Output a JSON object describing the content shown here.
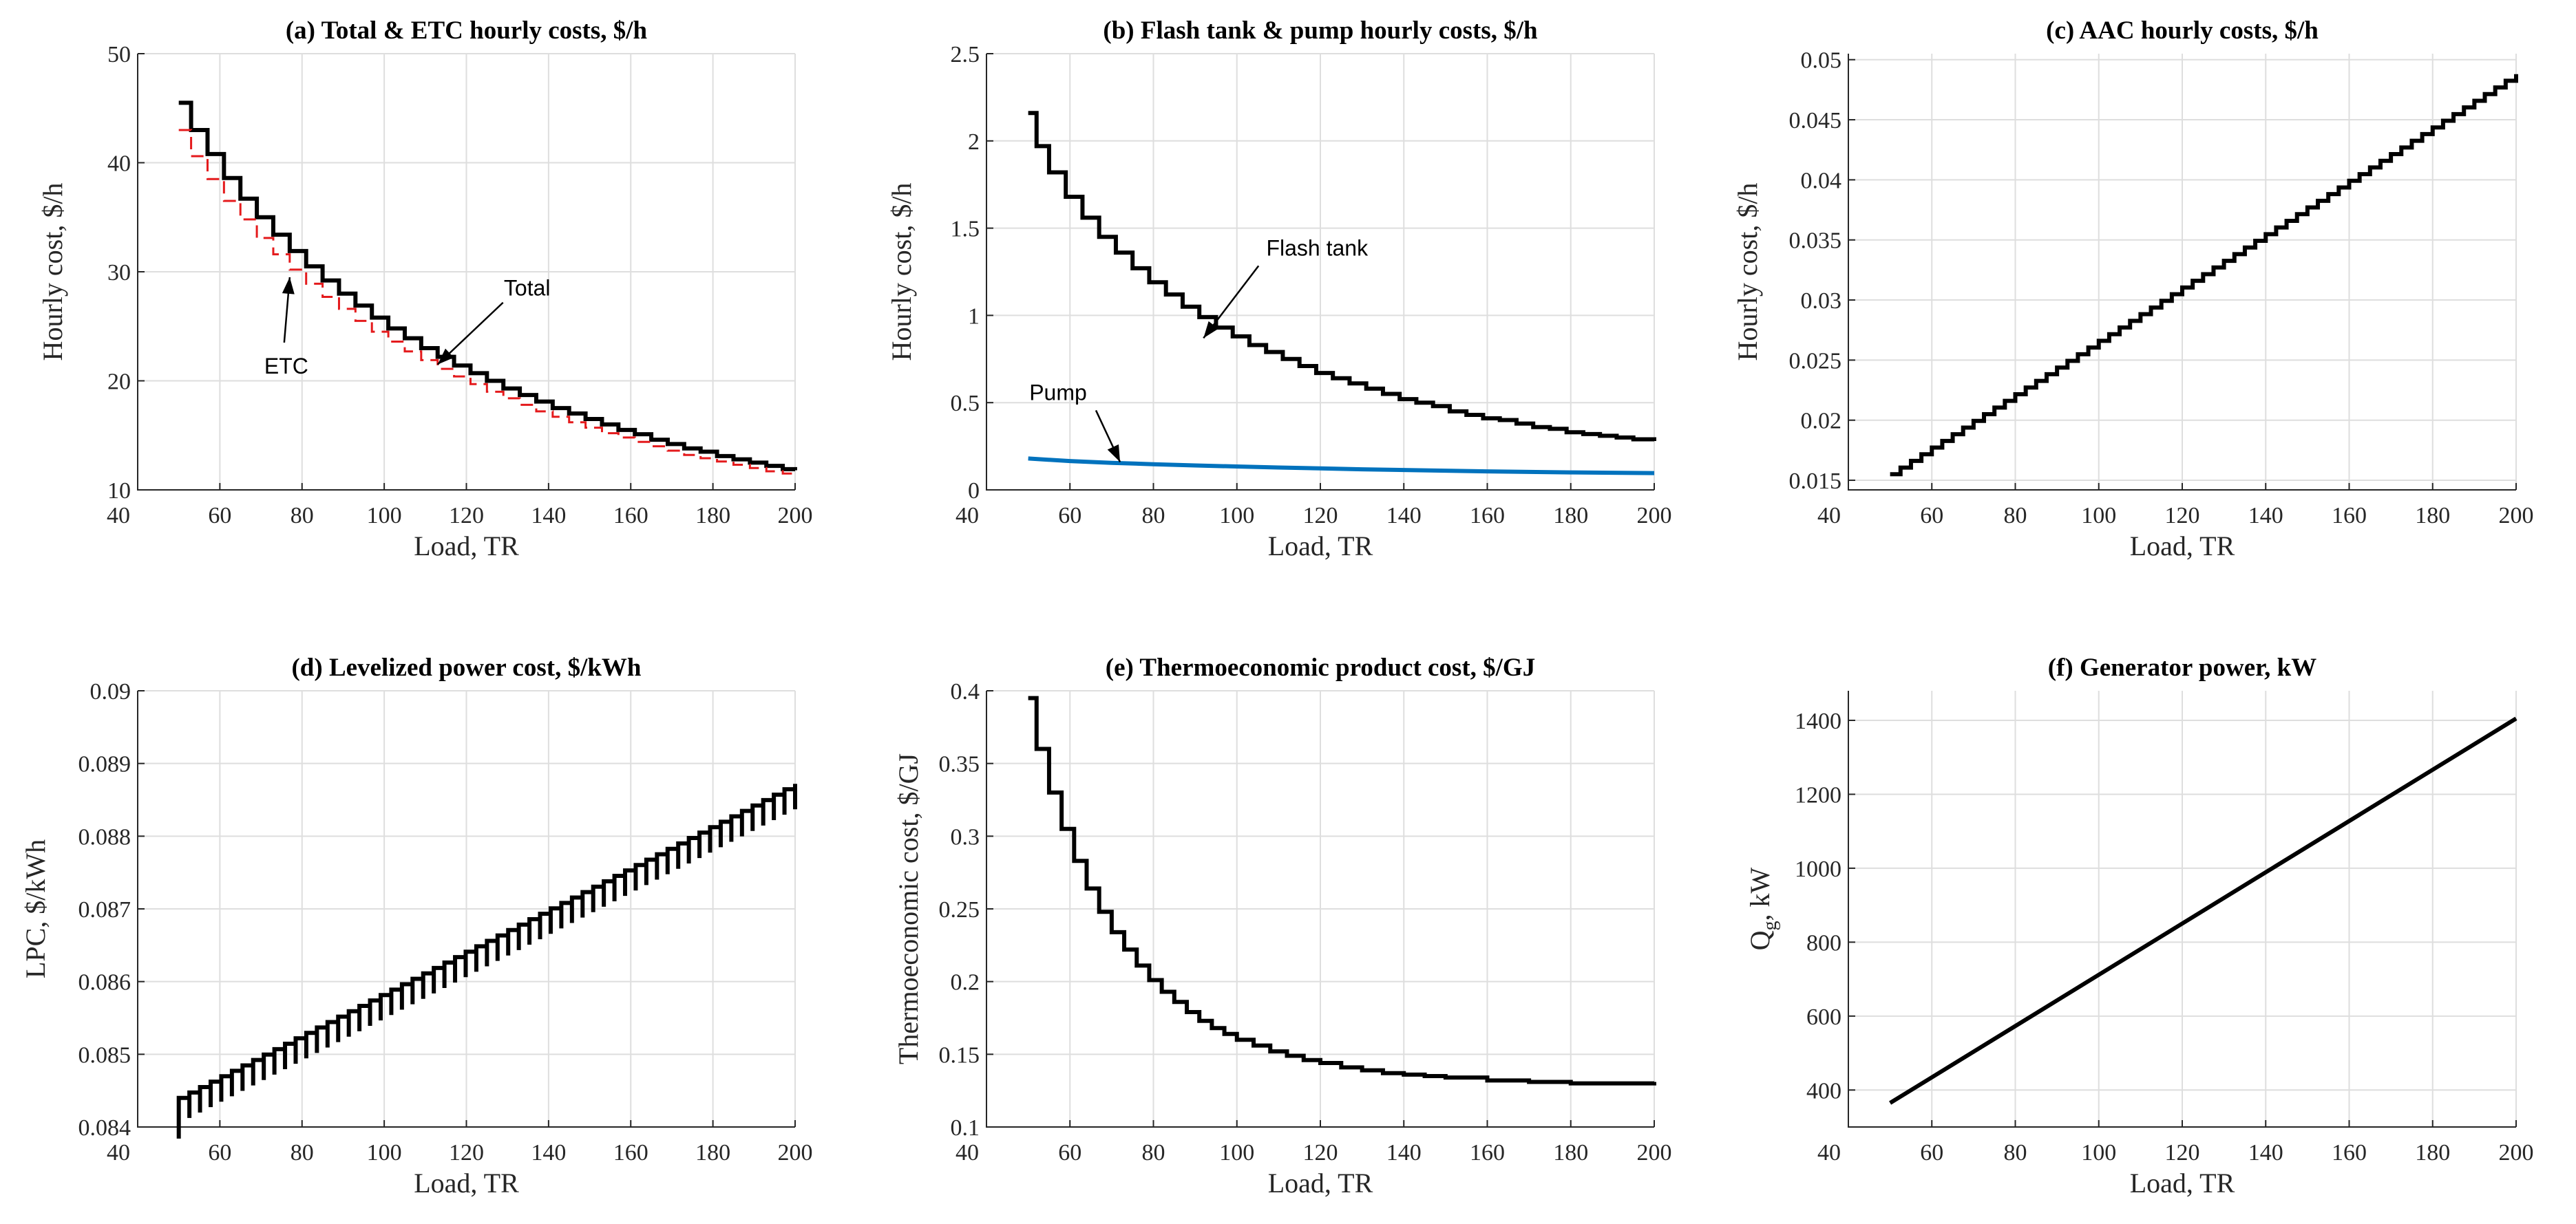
{
  "chart_data": [
    {
      "id": "a",
      "type": "line",
      "title": "(a) Total & ETC hourly costs, $/h",
      "xlabel": "Load, TR",
      "ylabel": "Hourly cost, $/h",
      "xlim": [
        40,
        200
      ],
      "ylim": [
        10,
        50
      ],
      "xticks": [
        40,
        60,
        80,
        100,
        120,
        140,
        160,
        180,
        200
      ],
      "yticks": [
        10,
        20,
        30,
        40,
        50
      ],
      "grid": true,
      "series": [
        {
          "name": "Total",
          "color": "#000000",
          "style": "step",
          "x": [
            50,
            53,
            57,
            61,
            65,
            69,
            73,
            77,
            81,
            85,
            89,
            93,
            97,
            101,
            105,
            109,
            113,
            117,
            121,
            125,
            129,
            133,
            137,
            141,
            145,
            149,
            153,
            157,
            161,
            165,
            169,
            173,
            177,
            181,
            185,
            189,
            193,
            197,
            200
          ],
          "values": [
            45.5,
            43.0,
            40.8,
            38.6,
            36.7,
            35.0,
            33.4,
            31.9,
            30.5,
            29.2,
            28.0,
            26.9,
            25.8,
            24.8,
            23.9,
            23.0,
            22.2,
            21.4,
            20.7,
            20.0,
            19.3,
            18.7,
            18.1,
            17.5,
            17.0,
            16.5,
            16.0,
            15.5,
            15.1,
            14.6,
            14.2,
            13.8,
            13.5,
            13.1,
            12.8,
            12.5,
            12.2,
            11.9,
            11.8
          ]
        },
        {
          "name": "ETC",
          "color": "#e41a1c",
          "style": "dashed",
          "x": [
            50,
            53,
            57,
            61,
            65,
            69,
            73,
            77,
            81,
            85,
            89,
            93,
            97,
            101,
            105,
            109,
            113,
            117,
            121,
            125,
            129,
            133,
            137,
            141,
            145,
            149,
            153,
            157,
            161,
            165,
            169,
            173,
            177,
            181,
            185,
            189,
            193,
            197,
            200
          ],
          "values": [
            43.0,
            40.6,
            38.5,
            36.5,
            34.8,
            33.1,
            31.6,
            30.2,
            28.9,
            27.7,
            26.6,
            25.5,
            24.5,
            23.6,
            22.7,
            21.9,
            21.1,
            20.4,
            19.7,
            19.0,
            18.4,
            17.8,
            17.2,
            16.7,
            16.2,
            15.7,
            15.2,
            14.8,
            14.4,
            14.0,
            13.6,
            13.2,
            12.9,
            12.6,
            12.3,
            12.0,
            11.7,
            11.5,
            11.4
          ]
        }
      ],
      "annotations": [
        {
          "text": "Total",
          "x": 113,
          "y": 21.5
        },
        {
          "text": "ETC",
          "x": 77,
          "y": 29.5
        }
      ]
    },
    {
      "id": "b",
      "type": "line",
      "title": "(b) Flash tank & pump hourly costs, $/h",
      "xlabel": "Load, TR",
      "ylabel": "Hourly cost, $/h",
      "xlim": [
        40,
        200
      ],
      "ylim": [
        0,
        2.5
      ],
      "xticks": [
        40,
        60,
        80,
        100,
        120,
        140,
        160,
        180,
        200
      ],
      "yticks": [
        0,
        0.5,
        1,
        1.5,
        2,
        2.5
      ],
      "yticklabels": [
        "0",
        "0.5",
        "1",
        "1.5",
        "2",
        "2.5"
      ],
      "grid": true,
      "series": [
        {
          "name": "Flash tank",
          "color": "#000000",
          "style": "step",
          "x": [
            50,
            52,
            55,
            59,
            63,
            67,
            71,
            75,
            79,
            83,
            87,
            91,
            95,
            99,
            103,
            107,
            111,
            115,
            119,
            123,
            127,
            131,
            135,
            139,
            143,
            147,
            151,
            155,
            159,
            163,
            167,
            171,
            175,
            179,
            183,
            187,
            191,
            195,
            200
          ],
          "values": [
            2.16,
            1.97,
            1.82,
            1.68,
            1.56,
            1.45,
            1.36,
            1.27,
            1.19,
            1.12,
            1.05,
            0.99,
            0.93,
            0.88,
            0.83,
            0.79,
            0.75,
            0.71,
            0.67,
            0.64,
            0.61,
            0.58,
            0.55,
            0.52,
            0.5,
            0.48,
            0.45,
            0.43,
            0.41,
            0.4,
            0.38,
            0.36,
            0.35,
            0.33,
            0.32,
            0.31,
            0.3,
            0.29,
            0.28
          ]
        },
        {
          "name": "Pump",
          "color": "#0072bd",
          "style": "line",
          "x": [
            50,
            60,
            70,
            80,
            90,
            100,
            110,
            120,
            130,
            140,
            150,
            160,
            170,
            180,
            190,
            200
          ],
          "values": [
            0.18,
            0.165,
            0.155,
            0.147,
            0.14,
            0.134,
            0.128,
            0.123,
            0.118,
            0.114,
            0.11,
            0.106,
            0.103,
            0.1,
            0.098,
            0.096
          ]
        }
      ],
      "annotations": [
        {
          "text": "Flash tank",
          "x": 92,
          "y": 0.87
        },
        {
          "text": "Pump",
          "x": 72,
          "y": 0.16
        }
      ]
    },
    {
      "id": "c",
      "type": "line",
      "title": "(c) AAC hourly costs, $/h",
      "xlabel": "Load, TR",
      "ylabel": "Hourly cost, $/h",
      "xlim": [
        40,
        200
      ],
      "ylim": [
        0.0142,
        0.0505
      ],
      "xticks": [
        40,
        60,
        80,
        100,
        120,
        140,
        160,
        180,
        200
      ],
      "yticks": [
        0.015,
        0.02,
        0.025,
        0.03,
        0.035,
        0.04,
        0.045,
        0.05
      ],
      "yticklabels": [
        "0.015",
        "0.02",
        "0.025",
        "0.03",
        "0.035",
        "0.04",
        "0.045",
        "0.05"
      ],
      "grid": true,
      "series": [
        {
          "name": "AAC",
          "color": "#000000",
          "style": "step",
          "x": [
            50,
            200
          ],
          "values": [
            0.0155,
            0.0488
          ],
          "steps": 60
        }
      ]
    },
    {
      "id": "d",
      "type": "line",
      "title": "(d) Levelized power cost, $/kWh",
      "xlabel": "Load, TR",
      "ylabel": "LPC, $/kWh",
      "xlim": [
        40,
        200
      ],
      "ylim": [
        0.084,
        0.09
      ],
      "xticks": [
        40,
        60,
        80,
        100,
        120,
        140,
        160,
        180,
        200
      ],
      "yticks": [
        0.084,
        0.085,
        0.086,
        0.087,
        0.088,
        0.089,
        0.09
      ],
      "yticklabels": [
        "0.084",
        "0.085",
        "0.086",
        "0.087",
        "0.088",
        "0.089",
        "0.09"
      ],
      "grid": true,
      "series": [
        {
          "name": "LPC",
          "color": "#000000",
          "style": "sawtooth",
          "x": [
            50,
            200
          ],
          "values": [
            0.0844,
            0.08872
          ],
          "steps": 58,
          "drop": 0.00035
        }
      ]
    },
    {
      "id": "e",
      "type": "line",
      "title": "(e) Thermoeconomic product cost, $/GJ",
      "xlabel": "Load, TR",
      "ylabel": "Thermoeconomic cost, $/GJ",
      "xlim": [
        40,
        200
      ],
      "ylim": [
        0.1,
        0.4
      ],
      "xticks": [
        40,
        60,
        80,
        100,
        120,
        140,
        160,
        180,
        200
      ],
      "yticks": [
        0.1,
        0.15,
        0.2,
        0.25,
        0.3,
        0.35,
        0.4
      ],
      "yticklabels": [
        "0.1",
        "0.15",
        "0.2",
        "0.25",
        "0.3",
        "0.35",
        "0.4"
      ],
      "grid": true,
      "series": [
        {
          "name": "Thermoeconomic cost",
          "color": "#000000",
          "style": "step",
          "x": [
            50,
            52,
            55,
            58,
            61,
            64,
            67,
            70,
            73,
            76,
            79,
            82,
            85,
            88,
            91,
            94,
            97,
            100,
            104,
            108,
            112,
            116,
            120,
            125,
            130,
            135,
            140,
            145,
            150,
            160,
            170,
            180,
            190,
            200
          ],
          "values": [
            0.395,
            0.36,
            0.33,
            0.305,
            0.283,
            0.264,
            0.248,
            0.234,
            0.222,
            0.211,
            0.201,
            0.193,
            0.186,
            0.179,
            0.173,
            0.168,
            0.164,
            0.16,
            0.156,
            0.152,
            0.149,
            0.146,
            0.144,
            0.141,
            0.139,
            0.137,
            0.136,
            0.135,
            0.134,
            0.132,
            0.131,
            0.13,
            0.13,
            0.131
          ]
        }
      ]
    },
    {
      "id": "f",
      "type": "line",
      "title": "(f) Generator power, kW",
      "xlabel": "Load, TR",
      "ylabel_main": "Q",
      "ylabel_sub": "g",
      "ylabel_rest": ", kW",
      "xlim": [
        40,
        200
      ],
      "ylim": [
        300,
        1480
      ],
      "xticks": [
        40,
        60,
        80,
        100,
        120,
        140,
        160,
        180,
        200
      ],
      "yticks": [
        400,
        600,
        800,
        1000,
        1200,
        1400
      ],
      "grid": true,
      "series": [
        {
          "name": "Generator power",
          "color": "#000000",
          "style": "line",
          "x": [
            50,
            200
          ],
          "values": [
            365,
            1405
          ]
        }
      ]
    }
  ]
}
